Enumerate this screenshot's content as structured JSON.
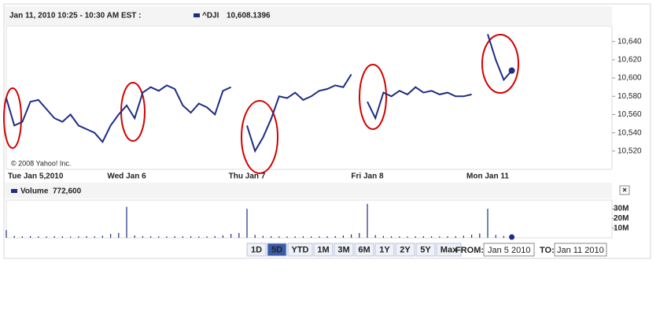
{
  "header": {
    "range_text": "Jan 11, 2010 10:25 - 10:30 AM EST :",
    "copyright": "© 2008 Yahoo! Inc."
  },
  "chart_data": [
    {
      "type": "line",
      "categories": [
        "Tue Jan 5,2010",
        null,
        null,
        null,
        null,
        null,
        null,
        null,
        null,
        null,
        null,
        null,
        null,
        null,
        null,
        "Wed Jan 6",
        null,
        null,
        null,
        null,
        null,
        null,
        null,
        null,
        null,
        null,
        null,
        null,
        null,
        null,
        "Thu Jan 7",
        null,
        null,
        null,
        null,
        null,
        null,
        null,
        null,
        null,
        null,
        null,
        null,
        null,
        null,
        "Fri Jan 8",
        null,
        null,
        null,
        null,
        null,
        null,
        null,
        null,
        null,
        null,
        null,
        null,
        null,
        null,
        "Mon Jan 11",
        null,
        null,
        null
      ],
      "series": [
        {
          "name": "^DJI",
          "color": "#1f2d82",
          "quote": "10,608.1396",
          "values": [
            10578,
            10548,
            10552,
            10574,
            10576,
            10566,
            10556,
            10552,
            10560,
            10548,
            10544,
            10540,
            10530,
            10548,
            10560,
            10570,
            10556,
            10584,
            10590,
            10586,
            10592,
            10588,
            10570,
            10562,
            10572,
            10568,
            10560,
            10586,
            10590,
            null,
            10548,
            10520,
            10535,
            10555,
            10580,
            10578,
            10584,
            10576,
            10580,
            10586,
            10588,
            10592,
            10590,
            10604,
            null,
            10574,
            10556,
            10584,
            10580,
            10586,
            10582,
            10590,
            10584,
            10586,
            10582,
            10584,
            10580,
            10580,
            10582,
            null,
            10648,
            10620,
            10598,
            10608.1396
          ]
        }
      ],
      "ylim": [
        10500,
        10657
      ],
      "yticks": [
        {
          "value": 10520,
          "label": "10,520"
        },
        {
          "value": 10540,
          "label": "10,540"
        },
        {
          "value": 10560,
          "label": "10,560"
        },
        {
          "value": 10580,
          "label": "10,580"
        },
        {
          "value": 10600,
          "label": "10,600"
        },
        {
          "value": 10620,
          "label": "10,620"
        },
        {
          "value": 10640,
          "label": "10,640"
        }
      ],
      "grid": false
    },
    {
      "type": "bar",
      "series": [
        {
          "name": "Volume",
          "color": "#1f2d82",
          "quote": "772,600",
          "values": [
            8000000,
            2000000,
            1500000,
            1800000,
            1500000,
            1400000,
            1600000,
            1500000,
            1300000,
            1500000,
            1700000,
            1500000,
            2200000,
            4000000,
            5000000,
            32000000,
            2500000,
            1800000,
            1600000,
            1500000,
            1400000,
            1600000,
            1500000,
            1700000,
            1400000,
            1500000,
            1800000,
            2500000,
            4000000,
            5000000,
            30000000,
            3000000,
            2000000,
            1700000,
            1500000,
            1400000,
            1500000,
            1600000,
            1400000,
            1500000,
            1600000,
            1800000,
            2400000,
            3500000,
            5000000,
            35000000,
            2800000,
            1900000,
            1600000,
            1500000,
            1400000,
            1500000,
            1600000,
            1500000,
            1400000,
            1600000,
            1700000,
            2200000,
            3200000,
            4500000,
            30000000,
            3000000,
            2000000,
            772600
          ]
        }
      ],
      "ylim": [
        0,
        39000000
      ],
      "yticks": [
        {
          "value": 10000000,
          "label": "10M"
        },
        {
          "value": 20000000,
          "label": "20M"
        },
        {
          "value": 30000000,
          "label": "30M"
        }
      ],
      "grid": false
    }
  ],
  "controls": {
    "ranges": [
      "1D",
      "5D",
      "YTD",
      "1M",
      "3M",
      "6M",
      "1Y",
      "2Y",
      "5Y",
      "Max"
    ],
    "active": 1,
    "from_label": "FROM:",
    "from_value": "Jan 5 2010",
    "to_label": "TO:",
    "to_value": "Jan 11 2010",
    "close": "×"
  }
}
